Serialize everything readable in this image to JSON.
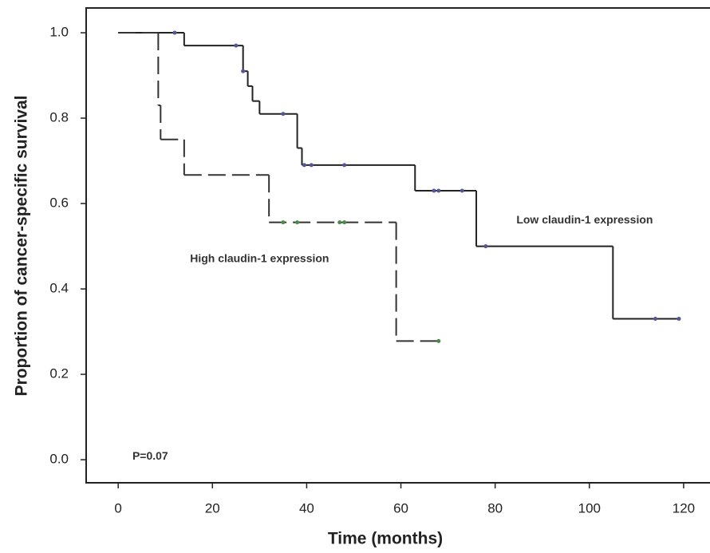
{
  "chart_data": {
    "type": "step",
    "x_label": "Time (months)",
    "y_label": "Proportion of cancer-specific survival",
    "xlim": [
      -6.8,
      125.6
    ],
    "ylim": [
      -0.054,
      1.058
    ],
    "xticks": [
      0,
      20,
      40,
      60,
      80,
      100,
      120
    ],
    "yticks": [
      {
        "value": 0,
        "label": "0.0"
      },
      0.2,
      0.4,
      0.6,
      0.8,
      {
        "value": 1,
        "label": "1.0"
      }
    ],
    "series": [
      {
        "name": "Low claudin-1 expression",
        "color": "#222222",
        "dashed": false,
        "censor_color": "#55559a",
        "x": [
          0,
          14,
          26.5,
          27.5,
          28.5,
          30,
          38,
          39,
          63,
          76,
          105,
          119
        ],
        "values": [
          1.0,
          0.97,
          0.91,
          0.875,
          0.84,
          0.81,
          0.73,
          0.69,
          0.63,
          0.5,
          0.33,
          0.33
        ],
        "censored_x": [
          12,
          25,
          26.5,
          35,
          39.5,
          41,
          48,
          67,
          68,
          73,
          78,
          114,
          119
        ],
        "censored_values": [
          1.0,
          0.97,
          0.91,
          0.81,
          0.69,
          0.69,
          0.69,
          0.63,
          0.63,
          0.63,
          0.5,
          0.33,
          0.33
        ]
      },
      {
        "name": "High claudin-1 expression",
        "color": "#333333",
        "dashed": true,
        "censor_color": "#4a8a4a",
        "x": [
          0,
          8.5,
          9,
          14,
          32,
          59,
          68
        ],
        "values": [
          1.0,
          0.83,
          0.75,
          0.667,
          0.556,
          0.278,
          0.278
        ],
        "censored_x": [
          35,
          38,
          47,
          48,
          68
        ],
        "censored_values": [
          0.556,
          0.556,
          0.556,
          0.556,
          0.278
        ]
      }
    ],
    "annotations": [
      {
        "text": "Low claudin-1 expression",
        "x": 99,
        "y": 0.56
      },
      {
        "text": "High claudin-1 expression",
        "x": 30,
        "y": 0.47
      },
      {
        "text": "P=0.07",
        "x": 6.8,
        "y": 0.007
      }
    ]
  }
}
